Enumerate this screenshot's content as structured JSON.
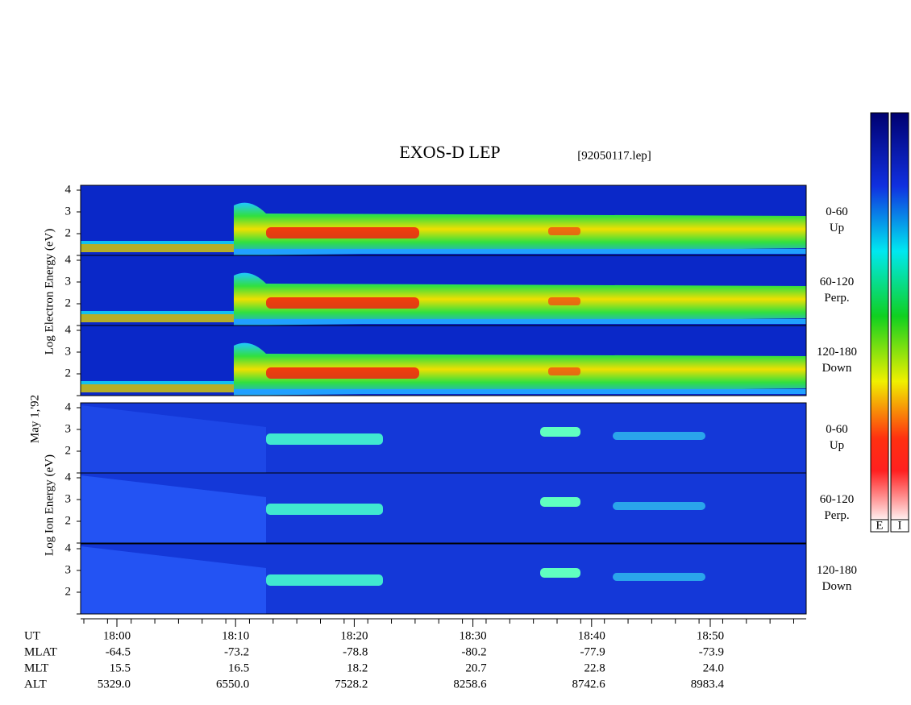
{
  "header": {
    "title": "EXOS-D LEP",
    "file": "[92050117.lep]",
    "date": "May  1,'92"
  },
  "electron": {
    "axis_label": "Log Electron Energy (eV)",
    "panels": [
      {
        "pitch": "0-60",
        "direction": "Up"
      },
      {
        "pitch": "60-120",
        "direction": "Perp."
      },
      {
        "pitch": "120-180",
        "direction": "Down"
      }
    ]
  },
  "ion": {
    "axis_label": "Log Ion Energy (eV)",
    "panels": [
      {
        "pitch": "0-60",
        "direction": "Up"
      },
      {
        "pitch": "60-120",
        "direction": "Perp."
      },
      {
        "pitch": "120-180",
        "direction": "Down"
      }
    ]
  },
  "y_ticks": [
    4,
    3,
    2
  ],
  "time_axis": {
    "rows": [
      {
        "label": "UT",
        "values": [
          "18:00",
          "18:10",
          "18:20",
          "18:30",
          "18:40",
          "18:50"
        ]
      },
      {
        "label": "MLAT",
        "values": [
          "-64.5",
          "-73.2",
          "-78.8",
          "-80.2",
          "-77.9",
          "-73.9"
        ]
      },
      {
        "label": "MLT",
        "values": [
          "15.5",
          "16.5",
          "18.2",
          "20.7",
          "22.8",
          "24.0"
        ]
      },
      {
        "label": "ALT",
        "values": [
          "5329.0",
          "6550.0",
          "7528.2",
          "8258.6",
          "8742.6",
          "8983.4"
        ]
      }
    ]
  },
  "colorbar": {
    "labels": [
      "E",
      "I"
    ]
  }
}
